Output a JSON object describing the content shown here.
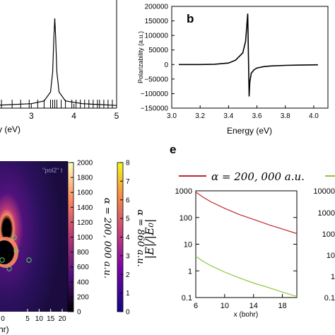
{
  "panel_a": {
    "xlabel_fragment": "Energy (eV)",
    "x_ticks": [
      "3",
      "4",
      "5"
    ]
  },
  "panel_b": {
    "letter": "b",
    "ylabel": "Polarizability (a.u.)",
    "xlabel": "Energy (eV)",
    "x_ticks": [
      "3.0",
      "3.2",
      "3.4",
      "3.6",
      "3.8",
      "4.0"
    ],
    "y_ticks": [
      "200000",
      "150000",
      "100000",
      "50000",
      "0",
      "−50000",
      "−100000",
      "−150000"
    ]
  },
  "panel_d": {
    "overlay_label": "\"pol2\" t",
    "colorbar1": {
      "ticks": [
        "2000",
        "1800",
        "1600",
        "1400",
        "1200",
        "1000",
        "800",
        "600",
        "400",
        "200",
        "0"
      ],
      "label": "α = 200, 000 a.u."
    },
    "colorbar2": {
      "ticks": [
        "8",
        "7",
        "6",
        "5",
        "4",
        "3",
        "2",
        "1",
        "0"
      ],
      "label": "α = 860 a.u."
    },
    "x_ticks": [
      "5",
      "10",
      "15",
      "20"
    ],
    "xlabel_fragment": "hr)",
    "corner_label": "0"
  },
  "panel_e": {
    "letter": "e",
    "legend_red": "α = 200, 000 a.u.",
    "ylabel": "|E|/|E₀|",
    "xlabel": "x (bohr)",
    "x_ticks": [
      "6",
      "10",
      "14",
      "18"
    ],
    "y_ticks": [
      "1000",
      "100",
      "10",
      "1",
      "0.1"
    ],
    "right_ticks": [
      "10000",
      "1000",
      "100",
      "10",
      "1",
      "0.1"
    ]
  },
  "colors": {
    "red": "#c0282d",
    "green": "#8cc63f",
    "black": "#000000"
  },
  "chart_data": [
    {
      "type": "line",
      "panel": "a",
      "xlabel": "Energy (eV)",
      "xlim": [
        2.1,
        5.0
      ],
      "x": [
        2.1,
        3.0,
        3.3,
        3.45,
        3.5,
        3.53,
        3.55,
        3.57,
        3.6,
        3.65,
        3.8,
        4.2,
        5.0
      ],
      "y": [
        0.03,
        0.05,
        0.08,
        0.18,
        0.4,
        0.8,
        1.0,
        0.8,
        0.4,
        0.18,
        0.08,
        0.05,
        0.03
      ],
      "stick_positions": [
        2.3,
        2.55,
        2.75,
        2.95,
        3.15,
        3.3,
        3.45,
        3.5,
        3.55,
        3.6,
        3.7,
        3.8,
        3.95,
        4.05,
        4.15,
        4.25,
        4.35,
        4.45,
        4.55,
        4.6,
        4.7,
        4.8,
        4.9
      ]
    },
    {
      "type": "line",
      "panel": "b",
      "xlabel": "Energy (eV)",
      "ylabel": "Polarizability (a.u.)",
      "xlim": [
        3.0,
        4.1
      ],
      "ylim": [
        -150000,
        200000
      ],
      "x": [
        3.05,
        3.2,
        3.3,
        3.4,
        3.45,
        3.5,
        3.52,
        3.535,
        3.545,
        3.55,
        3.56,
        3.58,
        3.6,
        3.65,
        3.7,
        3.8,
        3.9,
        4.03
      ],
      "y": [
        0,
        0,
        1000,
        5000,
        15000,
        40000,
        80000,
        175000,
        -110000,
        -60000,
        -30000,
        -18000,
        -12000,
        -7000,
        -5000,
        -3000,
        -2000,
        -1000
      ]
    },
    {
      "type": "heatmap",
      "panel": "d",
      "colorbar_ranges": [
        [
          0,
          2000
        ],
        [
          0,
          8
        ]
      ],
      "x_ticks": [
        5,
        10,
        15,
        20
      ]
    },
    {
      "type": "line",
      "panel": "e",
      "xlabel": "x (bohr)",
      "ylabel": "|E|/|E₀|",
      "xlim": [
        6,
        20
      ],
      "ylim": [
        0.1,
        1000
      ],
      "log_y": true,
      "series": [
        {
          "name": "α = 200, 000 a.u.",
          "x": [
            6,
            7,
            8,
            10,
            12,
            14,
            16,
            18,
            20
          ],
          "values": [
            900,
            580,
            400,
            220,
            130,
            85,
            55,
            37,
            25
          ]
        },
        {
          "x": [
            6,
            7,
            8,
            10,
            12,
            14,
            16,
            18,
            20
          ],
          "values": [
            3.5,
            2.3,
            1.6,
            0.9,
            0.55,
            0.35,
            0.24,
            0.16,
            0.11
          ]
        }
      ]
    }
  ]
}
